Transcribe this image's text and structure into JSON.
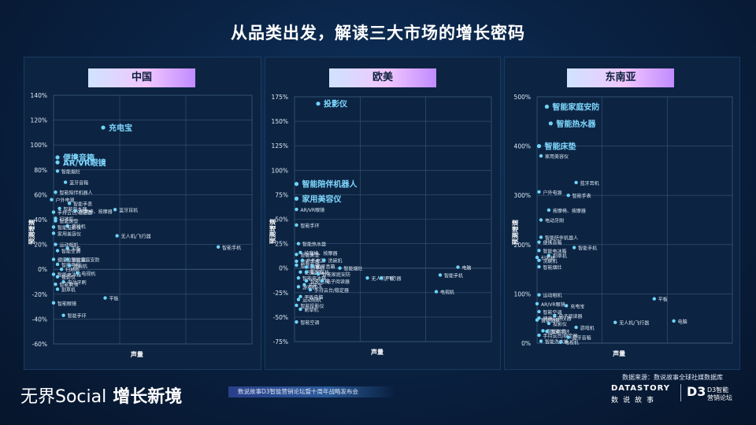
{
  "title": "从品类出发，解读三大市场的增长密码",
  "source": "数据来源：数说故事全球社媒数据库",
  "footer": {
    "brand_left_a": "无界Social",
    "brand_left_b": "增长新境",
    "subtitle": "数说故事D3智能营销论坛暨十周年战略发布会",
    "logo_en": "DATASTORY",
    "logo_cn": "数说故事",
    "logo_d3": "D3",
    "logo_d3_line1": "D3智能",
    "logo_d3_line2": "营销论坛"
  },
  "colors": {
    "point": "#6fd3f7",
    "label": "#dfe9f5",
    "highlight": "#7fd8ff",
    "grid": "#3b5677"
  },
  "chart_data": [
    {
      "type": "scatter",
      "title": "中国",
      "xlabel": "声量",
      "ylabel": "预测增速",
      "yticks": [
        "140%",
        "120%",
        "100%",
        "80%",
        "60%",
        "40%",
        "20%",
        "0%",
        "-20%",
        "-40%",
        "-60%"
      ],
      "ylim": [
        -60,
        140
      ],
      "xlim": [
        0,
        100
      ],
      "points": [
        {
          "label": "充电宝",
          "x": 25,
          "y": 114,
          "hl": true
        },
        {
          "label": "便携音箱",
          "x": 2,
          "y": 90,
          "hl": true
        },
        {
          "label": "AR/VR眼镜",
          "x": 2,
          "y": 86,
          "hl": true
        },
        {
          "label": "智能烟灶",
          "x": 2,
          "y": 79
        },
        {
          "label": "蓝牙音箱",
          "x": 6,
          "y": 70
        },
        {
          "label": "智能陪伴机器人",
          "x": 1,
          "y": 62
        },
        {
          "label": "户外电源",
          "x": -1,
          "y": 56
        },
        {
          "label": "智能手表",
          "x": 8,
          "y": 53
        },
        {
          "label": "智能热水器",
          "x": 3,
          "y": 49
        },
        {
          "label": "按摩椅、按摩器",
          "x": 11,
          "y": 47
        },
        {
          "label": "手持云台/稳定器",
          "x": 0,
          "y": 46
        },
        {
          "label": "蓝牙耳机",
          "x": 31,
          "y": 48
        },
        {
          "label": "扫地机",
          "x": 1,
          "y": 41
        },
        {
          "label": "智能床垫",
          "x": 1,
          "y": 39
        },
        {
          "label": "游戏机",
          "x": 7,
          "y": 35
        },
        {
          "label": "智能投影仪",
          "x": 0,
          "y": 34
        },
        {
          "label": "家用美容仪",
          "x": 0,
          "y": 29
        },
        {
          "label": "无人机/飞行器",
          "x": 32,
          "y": 27
        },
        {
          "label": "智能手机",
          "x": 83,
          "y": 18
        },
        {
          "label": "运动相机",
          "x": 1,
          "y": 20
        },
        {
          "label": "平板",
          "x": 7,
          "y": 17
        },
        {
          "label": "智能空调",
          "x": 2,
          "y": 15
        },
        {
          "label": "健康监测仪器",
          "x": 0,
          "y": 8
        },
        {
          "label": "智能家庭安防",
          "x": 7,
          "y": 8
        },
        {
          "label": "智能电视",
          "x": 2,
          "y": 4
        },
        {
          "label": "洗碗机",
          "x": 8,
          "y": 3
        },
        {
          "label": "扫地机",
          "x": 4,
          "y": 0
        },
        {
          "label": "智能电冰箱",
          "x": 0,
          "y": -4
        },
        {
          "label": "投影仪",
          "x": 2,
          "y": -6
        },
        {
          "label": "电视机",
          "x": 12,
          "y": -3
        },
        {
          "label": "电动牙刷",
          "x": 5,
          "y": -10
        },
        {
          "label": "智能剃须",
          "x": 1,
          "y": -12
        },
        {
          "label": "割草机",
          "x": 2,
          "y": -16
        },
        {
          "label": "平板",
          "x": 26,
          "y": -23
        },
        {
          "label": "智能眼镜",
          "x": 0,
          "y": -27
        },
        {
          "label": "智能手环",
          "x": 5,
          "y": -37
        }
      ]
    },
    {
      "type": "scatter",
      "title": "欧美",
      "xlabel": "声量",
      "ylabel": "预测增速",
      "yticks": [
        "175%",
        "150%",
        "125%",
        "100%",
        "75%",
        "50%",
        "25%",
        "0%",
        "-25%",
        "-50%",
        "-75%"
      ],
      "ylim": [
        -75,
        175
      ],
      "xlim": [
        0,
        100
      ],
      "points": [
        {
          "label": "投影仪",
          "x": 12,
          "y": 168,
          "hl": true
        },
        {
          "label": "智能陪伴机器人",
          "x": 1,
          "y": 86,
          "hl": true
        },
        {
          "label": "家用美容仪",
          "x": 1,
          "y": 71,
          "hl": true
        },
        {
          "label": "AR/VR眼镜",
          "x": 1,
          "y": 60
        },
        {
          "label": "智能手环",
          "x": 1,
          "y": 44
        },
        {
          "label": "智能热水器",
          "x": 2,
          "y": 25
        },
        {
          "label": "智能床垫",
          "x": 1,
          "y": 14
        },
        {
          "label": "按摩椅、按摩器",
          "x": 3,
          "y": 16
        },
        {
          "label": "智能手表",
          "x": 1,
          "y": 7
        },
        {
          "label": "户外电源",
          "x": 4,
          "y": 8
        },
        {
          "label": "洗碗机",
          "x": 15,
          "y": 8
        },
        {
          "label": "智能割草",
          "x": 1,
          "y": 3
        },
        {
          "label": "割草机",
          "x": 6,
          "y": 1
        },
        {
          "label": "蓝牙音箱",
          "x": 9,
          "y": 2
        },
        {
          "label": "智能烟灶",
          "x": 23,
          "y": 0
        },
        {
          "label": "便携音箱",
          "x": 3,
          "y": -4
        },
        {
          "label": "蓝牙耳机",
          "x": 6,
          "y": -4
        },
        {
          "label": "智能家庭安防",
          "x": 12,
          "y": -6
        },
        {
          "label": "智能电冰箱",
          "x": 2,
          "y": -10
        },
        {
          "label": "智能电视",
          "x": 6,
          "y": -13
        },
        {
          "label": "电子阅读器",
          "x": 14,
          "y": -13
        },
        {
          "label": "无人机/飞行器",
          "x": 37,
          "y": -10
        },
        {
          "label": "平板",
          "x": 44,
          "y": -10
        },
        {
          "label": "电脑",
          "x": 83,
          "y": 1
        },
        {
          "label": "智能手机",
          "x": 74,
          "y": -7
        },
        {
          "label": "电视机",
          "x": 72,
          "y": -24
        },
        {
          "label": "游戏机",
          "x": 2,
          "y": -19
        },
        {
          "label": "充电宝",
          "x": 5,
          "y": -17
        },
        {
          "label": "手持云台/稳定器",
          "x": 8,
          "y": -22
        },
        {
          "label": "平板电脑",
          "x": 3,
          "y": -29
        },
        {
          "label": "运动相机",
          "x": 2,
          "y": -32
        },
        {
          "label": "智能投影仪",
          "x": 1,
          "y": -38
        },
        {
          "label": "割草机",
          "x": 3,
          "y": -42
        },
        {
          "label": "智能空调",
          "x": 1,
          "y": -55
        }
      ]
    },
    {
      "type": "scatter",
      "title": "东南亚",
      "xlabel": "声量",
      "ylabel": "预测增速",
      "yticks": [
        "500%",
        "400%",
        "300%",
        "200%",
        "100%",
        "0%"
      ],
      "ylim": [
        0,
        500
      ],
      "xlim": [
        0,
        100
      ],
      "points": [
        {
          "label": "智能家庭安防",
          "x": 5,
          "y": 480,
          "hl": true
        },
        {
          "label": "智能热水器",
          "x": 7,
          "y": 446,
          "hl": true
        },
        {
          "label": "智能床垫",
          "x": 1,
          "y": 400,
          "hl": true
        },
        {
          "label": "家用美容仪",
          "x": 2,
          "y": 380
        },
        {
          "label": "蓝牙耳机",
          "x": 20,
          "y": 326
        },
        {
          "label": "户外电源",
          "x": 1,
          "y": 307
        },
        {
          "label": "智能手表",
          "x": 16,
          "y": 300
        },
        {
          "label": "按摩椅、按摩器",
          "x": 6,
          "y": 270
        },
        {
          "label": "电动牙刷",
          "x": 2,
          "y": 250
        },
        {
          "label": "智能陪伴机器人",
          "x": 2,
          "y": 215
        },
        {
          "label": "便携音箱",
          "x": 1,
          "y": 205
        },
        {
          "label": "智能手机",
          "x": 19,
          "y": 194
        },
        {
          "label": "智能电冰箱",
          "x": 1,
          "y": 188
        },
        {
          "label": "割草机",
          "x": 6,
          "y": 178
        },
        {
          "label": "扫地机",
          "x": 0,
          "y": 174
        },
        {
          "label": "洗碗机",
          "x": 1,
          "y": 168
        },
        {
          "label": "智能烟灶",
          "x": 1,
          "y": 155
        },
        {
          "label": "运动相机",
          "x": 1,
          "y": 98
        },
        {
          "label": "平板",
          "x": 60,
          "y": 90
        },
        {
          "label": "AR/VR眼镜",
          "x": 0,
          "y": 80
        },
        {
          "label": "充电宝",
          "x": 15,
          "y": 76
        },
        {
          "label": "智能空调",
          "x": 1,
          "y": 64
        },
        {
          "label": "电子阅读器",
          "x": 9,
          "y": 56
        },
        {
          "label": "健康监测仪器",
          "x": 1,
          "y": 51
        },
        {
          "label": "智能割草",
          "x": 0,
          "y": 47
        },
        {
          "label": "投影仪",
          "x": 6,
          "y": 40
        },
        {
          "label": "无人机/飞行器",
          "x": 40,
          "y": 42
        },
        {
          "label": "电脑",
          "x": 70,
          "y": 45
        },
        {
          "label": "游戏机",
          "x": 20,
          "y": 32
        },
        {
          "label": "智能剃须",
          "x": 3,
          "y": 25
        },
        {
          "label": "智能手环",
          "x": 5,
          "y": 24
        },
        {
          "label": "手持云台/稳定器",
          "x": 1,
          "y": 16
        },
        {
          "label": "蓝牙音箱",
          "x": 16,
          "y": 12
        },
        {
          "label": "智能洗衣机",
          "x": 2,
          "y": 4
        },
        {
          "label": "电视机",
          "x": 12,
          "y": 2
        }
      ]
    }
  ]
}
